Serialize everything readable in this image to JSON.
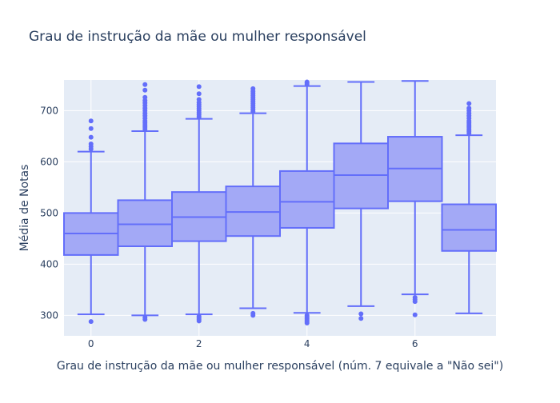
{
  "chart_data": {
    "type": "box",
    "title": "Grau de instrução da mãe ou mulher responsável",
    "xlabel": "Grau de instrução da mãe ou mulher responsável (núm. 7 equivale a \"Não sei\")",
    "ylabel": "Média de Notas",
    "xlim": [
      -0.5,
      7.5
    ],
    "ylim": [
      260,
      760
    ],
    "x_ticks": [
      0,
      2,
      4,
      6
    ],
    "y_ticks": [
      300,
      400,
      500,
      600,
      700
    ],
    "grid": true,
    "colors": {
      "box_fill": "#a3a9f6",
      "box_line": "#636efa",
      "plot_bg": "#e5ecf6",
      "grid": "#ffffff",
      "text": "#2a3f5f"
    },
    "series": [
      {
        "x": 0,
        "q1": 418,
        "median": 460,
        "q3": 500,
        "lowerfence": 302,
        "upperfence": 620,
        "outliers": [
          288,
          625,
          630,
          635,
          648,
          665,
          680
        ]
      },
      {
        "x": 1,
        "q1": 435,
        "median": 478,
        "q3": 525,
        "lowerfence": 300,
        "upperfence": 660,
        "outliers": [
          292,
          296,
          664,
          668,
          672,
          676,
          680,
          685,
          690,
          695,
          700,
          705,
          710,
          715,
          720,
          726,
          740,
          751
        ]
      },
      {
        "x": 2,
        "q1": 445,
        "median": 492,
        "q3": 541,
        "lowerfence": 302,
        "upperfence": 684,
        "outliers": [
          289,
          292,
          295,
          298,
          688,
          692,
          696,
          700,
          704,
          708,
          712,
          716,
          722,
          733,
          747
        ]
      },
      {
        "x": 3,
        "q1": 455,
        "median": 502,
        "q3": 552,
        "lowerfence": 314,
        "upperfence": 695,
        "outliers": [
          300,
          304,
          698,
          702,
          706,
          710,
          714,
          718,
          722,
          726,
          730,
          734,
          738,
          743
        ]
      },
      {
        "x": 4,
        "q1": 471,
        "median": 522,
        "q3": 582,
        "lowerfence": 305,
        "upperfence": 748,
        "outliers": [
          285,
          288,
          291,
          294,
          297,
          300,
          751,
          754,
          756
        ]
      },
      {
        "x": 5,
        "q1": 509,
        "median": 574,
        "q3": 636,
        "lowerfence": 318,
        "upperfence": 756,
        "outliers": [
          294,
          303
        ]
      },
      {
        "x": 6,
        "q1": 523,
        "median": 587,
        "q3": 649,
        "lowerfence": 341,
        "upperfence": 758,
        "outliers": [
          301,
          327,
          331,
          335
        ]
      },
      {
        "x": 7,
        "q1": 426,
        "median": 467,
        "q3": 517,
        "lowerfence": 304,
        "upperfence": 652,
        "outliers": [
          656,
          660,
          664,
          668,
          672,
          676,
          680,
          685,
          690,
          695,
          700,
          705,
          714
        ]
      }
    ]
  }
}
